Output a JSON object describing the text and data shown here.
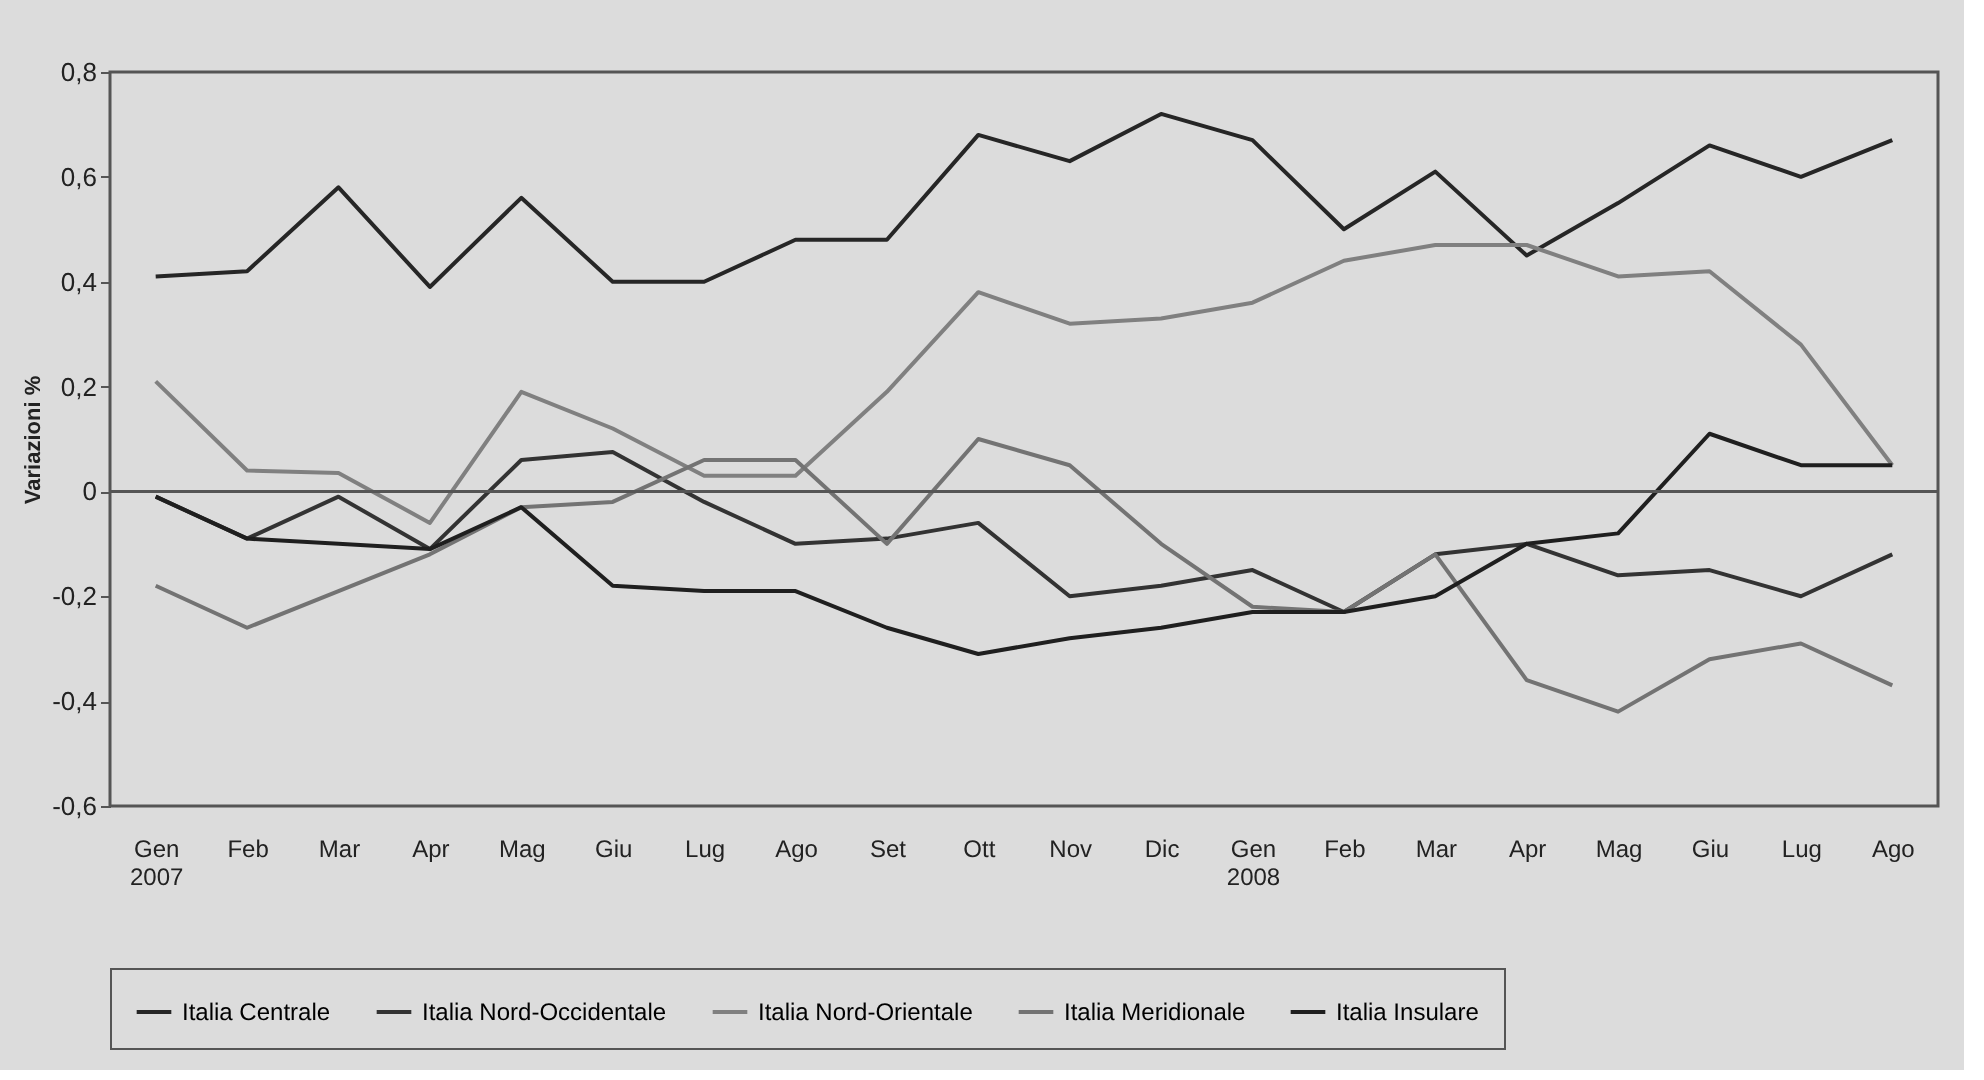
{
  "chart_data": {
    "type": "line",
    "ylabel": "Variazioni %",
    "categories": [
      "Gen\n2007",
      "Feb",
      "Mar",
      "Apr",
      "Mag",
      "Giu",
      "Lug",
      "Ago",
      "Set",
      "Ott",
      "Nov",
      "Dic",
      "Gen\n2008",
      "Feb",
      "Mar",
      "Apr",
      "Mag",
      "Giu",
      "Lug",
      "Ago"
    ],
    "series": [
      {
        "name": "Italia Centrale",
        "color": "#262626",
        "values": [
          0.41,
          0.42,
          0.58,
          0.39,
          0.56,
          0.4,
          0.4,
          0.48,
          0.48,
          0.68,
          0.63,
          0.72,
          0.67,
          0.5,
          0.61,
          0.45,
          0.55,
          0.66,
          0.6,
          0.67
        ]
      },
      {
        "name": "Italia Nord-Occidentale",
        "color": "#333333",
        "values": [
          -0.01,
          -0.09,
          -0.01,
          -0.11,
          0.06,
          0.075,
          -0.02,
          -0.1,
          -0.09,
          -0.06,
          -0.2,
          -0.18,
          -0.15,
          -0.23,
          -0.12,
          -0.1,
          -0.16,
          -0.15,
          -0.2,
          -0.12
        ]
      },
      {
        "name": "Italia Nord-Orientale",
        "color": "#808080",
        "values": [
          0.21,
          0.04,
          0.035,
          -0.06,
          0.19,
          0.12,
          0.03,
          0.03,
          0.19,
          0.38,
          0.32,
          0.33,
          0.36,
          0.44,
          0.47,
          0.47,
          0.41,
          0.42,
          0.28,
          0.05
        ]
      },
      {
        "name": "Italia Meridionale",
        "color": "#737373",
        "values": [
          -0.18,
          -0.26,
          -0.19,
          -0.12,
          -0.03,
          -0.02,
          0.06,
          0.06,
          -0.1,
          0.1,
          0.05,
          -0.1,
          -0.22,
          -0.23,
          -0.12,
          -0.36,
          -0.42,
          -0.32,
          -0.29,
          -0.37
        ]
      },
      {
        "name": "Italia Insulare",
        "color": "#1f1f1f",
        "values": [
          -0.01,
          -0.09,
          -0.1,
          -0.11,
          -0.03,
          -0.18,
          -0.19,
          -0.19,
          -0.26,
          -0.31,
          -0.28,
          -0.26,
          -0.23,
          -0.23,
          -0.2,
          -0.1,
          -0.08,
          0.11,
          0.05,
          0.05
        ]
      }
    ],
    "ylim": [
      -0.6,
      0.8
    ],
    "yticks": [
      {
        "value": -0.6,
        "label": "-0,6"
      },
      {
        "value": -0.4,
        "label": "-0,4"
      },
      {
        "value": -0.2,
        "label": "-0,2"
      },
      0,
      {
        "value": 0.2,
        "label": "0,2"
      },
      {
        "value": 0.4,
        "label": "0,4"
      },
      {
        "value": 0.6,
        "label": "0,6"
      },
      {
        "value": 0.8,
        "label": "0,8"
      }
    ],
    "ref_lines": [
      {
        "axis": "y",
        "value": 0
      }
    ],
    "grid": false,
    "legend": "bottom",
    "marker": "none",
    "line_style": "solid"
  }
}
